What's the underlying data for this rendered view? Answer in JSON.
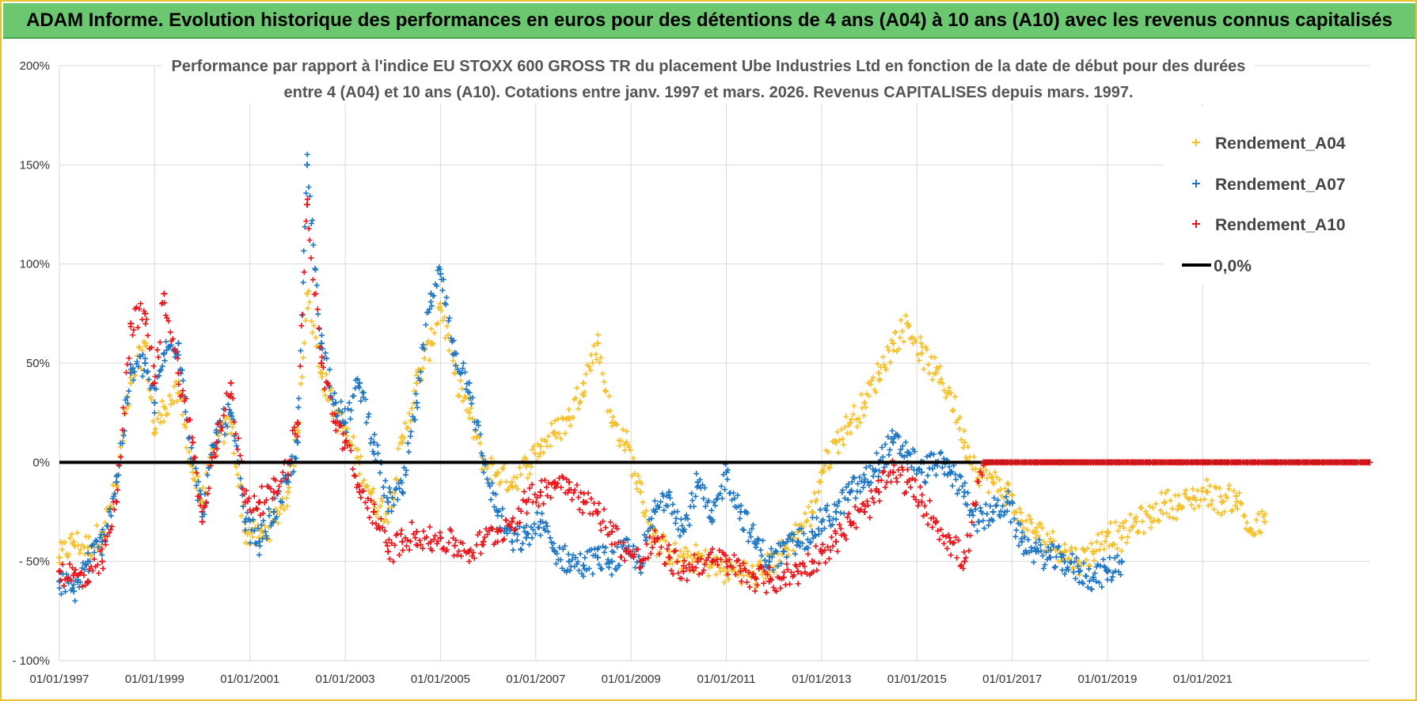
{
  "header": {
    "banner": "ADAM Informe. Evolution historique des performances en euros pour des détentions de 4 ans (A04) à 10 ans (A10) avec les revenus connus capitalisés"
  },
  "colors": {
    "banner_bg": "#6cc870",
    "frame_border": "#e8c42a",
    "A04": "#f5c02a",
    "A07": "#1f77c4",
    "A10": "#e8161b",
    "zero_line": "#000000",
    "grid": "#d9d9d9"
  },
  "chart_data": {
    "type": "scatter",
    "title_lines": [
      "Performance par rapport à l'indice EU STOXX 600 GROSS TR  du placement Ube Industries Ltd en fonction de la date de début pour des durées",
      "entre 4 (A04) et 10 ans (A10).  Cotations entre janv. 1997 et mars. 2026.  Revenus CAPITALISES depuis mars. 1997."
    ],
    "x_type": "date (decimal year)",
    "xlim": [
      1997.0,
      2024.5
    ],
    "ylim": [
      -100,
      200
    ],
    "y_ticks": [
      {
        "value": 200,
        "label": "200%"
      },
      {
        "value": 150,
        "label": "150%"
      },
      {
        "value": 100,
        "label": "100%"
      },
      {
        "value": 50,
        "label": "50%"
      },
      {
        "value": 0,
        "label": "0%"
      },
      {
        "value": -50,
        "label": "- 50%"
      },
      {
        "value": -100,
        "label": "- 100%"
      }
    ],
    "x_ticks": [
      {
        "value": 1997,
        "label": "01/01/1997"
      },
      {
        "value": 1999,
        "label": "01/01/1999"
      },
      {
        "value": 2001,
        "label": "01/01/2001"
      },
      {
        "value": 2003,
        "label": "01/01/2003"
      },
      {
        "value": 2005,
        "label": "01/01/2005"
      },
      {
        "value": 2007,
        "label": "01/01/2007"
      },
      {
        "value": 2009,
        "label": "01/01/2009"
      },
      {
        "value": 2011,
        "label": "01/01/2011"
      },
      {
        "value": 2013,
        "label": "01/01/2013"
      },
      {
        "value": 2015,
        "label": "01/01/2015"
      },
      {
        "value": 2017,
        "label": "01/01/2017"
      },
      {
        "value": 2019,
        "label": "01/01/2019"
      },
      {
        "value": 2021,
        "label": "01/01/2021"
      }
    ],
    "grid": true,
    "legend_position": "top-right",
    "series": [
      {
        "name": "Rendement_A04",
        "color": "#f5c02a",
        "marker": "+",
        "x": [
          1997.0,
          1997.3,
          1997.6,
          1997.9,
          1998.2,
          1998.5,
          1998.8,
          1999.0,
          1999.2,
          1999.5,
          1999.8,
          2000.0,
          2000.3,
          2000.6,
          2000.9,
          2001.2,
          2001.5,
          2001.8,
          2002.0,
          2002.2,
          2002.5,
          2002.8,
          2003.0,
          2003.3,
          2003.6,
          2003.9,
          2004.2,
          2004.5,
          2004.8,
          2005.0,
          2005.3,
          2005.6,
          2005.9,
          2006.2,
          2006.5,
          2006.8,
          2007.1,
          2007.4,
          2007.7,
          2008.0,
          2008.3,
          2008.6,
          2008.9,
          2009.2,
          2009.5,
          2009.8,
          2010.1,
          2010.4,
          2010.7,
          2011.0,
          2011.3,
          2011.6,
          2011.9,
          2012.2,
          2012.5,
          2012.8,
          2013.0,
          2013.3,
          2013.6,
          2013.9,
          2014.2,
          2014.5,
          2014.8,
          2015.1,
          2015.4,
          2015.7,
          2016.0,
          2016.3,
          2016.6,
          2016.9,
          2017.2,
          2017.5,
          2017.8,
          2018.1,
          2018.4,
          2018.7,
          2019.0,
          2019.3,
          2019.6,
          2019.9,
          2020.2,
          2020.5,
          2020.8,
          2021.1,
          2021.4,
          2021.7,
          2022.0,
          2022.3
        ],
        "y": [
          -48,
          -40,
          -43,
          -35,
          -12,
          40,
          60,
          15,
          28,
          35,
          -5,
          -20,
          10,
          20,
          -35,
          -38,
          -30,
          -15,
          15,
          85,
          45,
          25,
          15,
          0,
          -20,
          -25,
          10,
          40,
          60,
          80,
          45,
          25,
          0,
          -5,
          -10,
          -2,
          8,
          15,
          22,
          40,
          60,
          20,
          10,
          -15,
          -40,
          -45,
          -50,
          -48,
          -52,
          -55,
          -54,
          -58,
          -52,
          -45,
          -35,
          -25,
          -5,
          10,
          20,
          30,
          45,
          60,
          70,
          55,
          45,
          35,
          10,
          -5,
          -10,
          -15,
          -30,
          -35,
          -40,
          -45,
          -50,
          -45,
          -35,
          -38,
          -30,
          -28,
          -20,
          -22,
          -18,
          -15,
          -20,
          -17,
          -35,
          -30
        ]
      },
      {
        "name": "Rendement_A07",
        "color": "#1f77c4",
        "marker": "+",
        "x": [
          1997.0,
          1997.3,
          1997.6,
          1997.9,
          1998.2,
          1998.5,
          1998.8,
          1999.0,
          1999.2,
          1999.5,
          1999.8,
          2000.0,
          2000.3,
          2000.6,
          2000.9,
          2001.2,
          2001.5,
          2001.8,
          2002.0,
          2002.2,
          2002.5,
          2002.8,
          2003.0,
          2003.3,
          2003.6,
          2003.9,
          2004.2,
          2004.5,
          2004.8,
          2005.0,
          2005.3,
          2005.6,
          2005.9,
          2006.2,
          2006.5,
          2006.8,
          2007.1,
          2007.4,
          2007.7,
          2008.0,
          2008.3,
          2008.6,
          2008.9,
          2009.2,
          2009.5,
          2009.8,
          2010.1,
          2010.4,
          2010.7,
          2011.0,
          2011.3,
          2011.6,
          2011.9,
          2012.2,
          2012.5,
          2012.8,
          2013.0,
          2013.3,
          2013.6,
          2013.9,
          2014.2,
          2014.5,
          2014.8,
          2015.1,
          2015.4,
          2015.7,
          2016.0,
          2016.3,
          2016.6,
          2016.9,
          2017.2,
          2017.5,
          2017.8,
          2018.1,
          2018.4,
          2018.7,
          2019.0,
          2019.3
        ],
        "y": [
          -60,
          -65,
          -50,
          -40,
          -10,
          45,
          50,
          30,
          55,
          60,
          0,
          -25,
          15,
          25,
          -30,
          -40,
          -25,
          -10,
          10,
          150,
          60,
          30,
          20,
          40,
          10,
          -20,
          -15,
          30,
          85,
          95,
          55,
          40,
          0,
          -25,
          -40,
          -38,
          -30,
          -45,
          -50,
          -52,
          -48,
          -50,
          -45,
          -50,
          -25,
          -15,
          -35,
          -10,
          -30,
          -5,
          -25,
          -40,
          -50,
          -45,
          -40,
          -35,
          -30,
          -25,
          -15,
          -10,
          0,
          10,
          5,
          -5,
          0,
          -5,
          -15,
          -30,
          -25,
          -20,
          -40,
          -45,
          -48,
          -50,
          -55,
          -58,
          -55,
          -50
        ]
      },
      {
        "name": "Rendement_A10",
        "color": "#e8161b",
        "marker": "+",
        "x": [
          1997.0,
          1997.3,
          1997.6,
          1997.9,
          1998.2,
          1998.5,
          1998.8,
          1999.0,
          1999.2,
          1999.5,
          1999.8,
          2000.0,
          2000.3,
          2000.6,
          2000.9,
          2001.2,
          2001.5,
          2001.8,
          2002.0,
          2002.2,
          2002.5,
          2002.8,
          2003.0,
          2003.3,
          2003.6,
          2003.9,
          2004.2,
          2004.5,
          2004.8,
          2005.0,
          2005.3,
          2005.6,
          2005.9,
          2006.2,
          2006.5,
          2006.8,
          2007.1,
          2007.4,
          2007.7,
          2008.0,
          2008.3,
          2008.6,
          2008.9,
          2009.2,
          2009.5,
          2009.8,
          2010.1,
          2010.4,
          2010.7,
          2011.0,
          2011.3,
          2011.6,
          2011.9,
          2012.2,
          2012.5,
          2012.8,
          2013.0,
          2013.3,
          2013.6,
          2013.9,
          2014.2,
          2014.5,
          2014.8,
          2015.1,
          2015.4,
          2015.7,
          2016.0,
          2016.4,
          2017.0,
          2017.5,
          2018.0,
          2018.5,
          2019.0,
          2019.5,
          2020.0,
          2020.5,
          2021.0,
          2021.5,
          2022.0,
          2022.5,
          2023.0,
          2023.5,
          2024.0,
          2024.5
        ],
        "y": [
          -55,
          -57,
          -60,
          -50,
          -20,
          70,
          75,
          40,
          85,
          45,
          10,
          -30,
          10,
          40,
          -20,
          -20,
          -15,
          0,
          20,
          130,
          50,
          20,
          10,
          -15,
          -25,
          -45,
          -40,
          -35,
          -40,
          -38,
          -42,
          -45,
          -40,
          -35,
          -30,
          -20,
          -15,
          -10,
          -10,
          -20,
          -25,
          -35,
          -45,
          -50,
          -40,
          -48,
          -55,
          -50,
          -50,
          -50,
          -55,
          -58,
          -60,
          -58,
          -55,
          -50,
          -45,
          -40,
          -30,
          -25,
          -15,
          -5,
          -10,
          -20,
          -30,
          -40,
          -50,
          0,
          0,
          0,
          0,
          0,
          0,
          0,
          0,
          0,
          0,
          0,
          0,
          0,
          0,
          0,
          0,
          0
        ]
      },
      {
        "name": "0,0%",
        "color": "#000000",
        "marker": "line",
        "x": [
          1997.0,
          2024.5
        ],
        "y": [
          0,
          0
        ]
      }
    ]
  }
}
